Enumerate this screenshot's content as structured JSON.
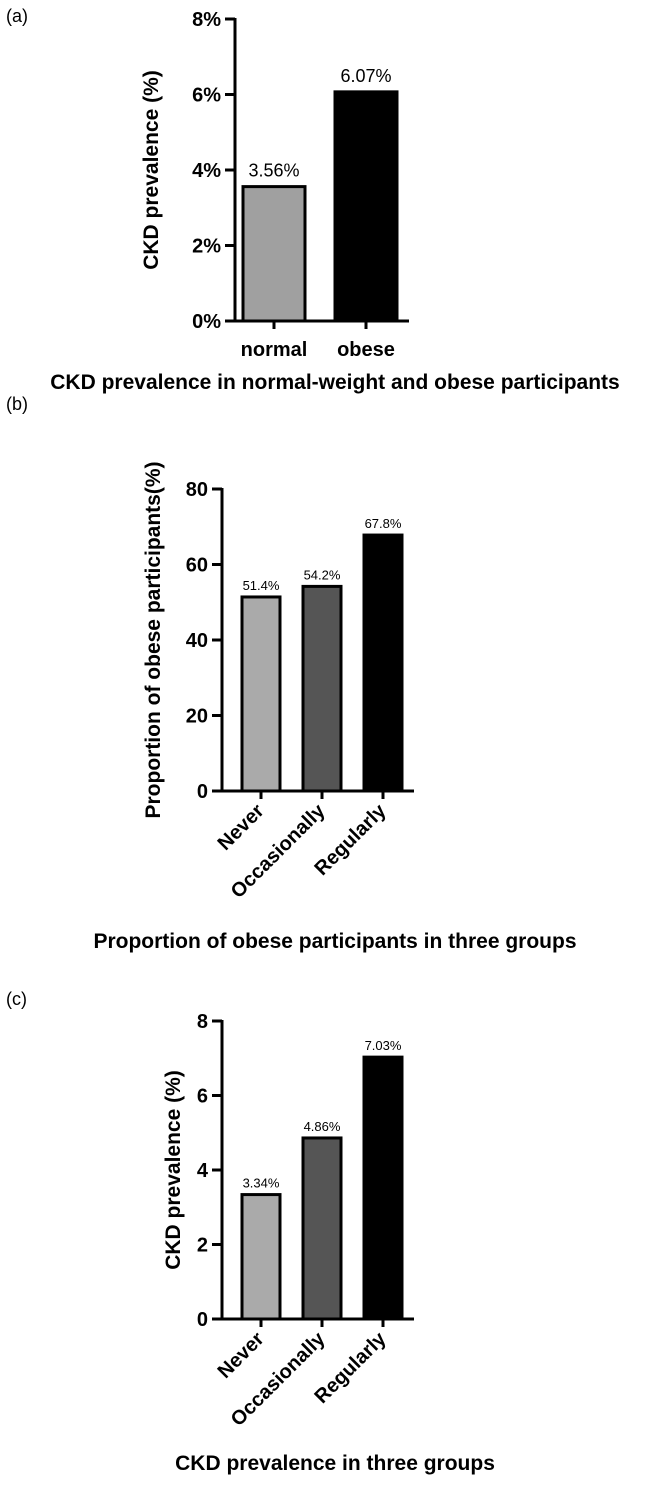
{
  "chart_data": [
    {
      "type": "bar",
      "panel_label": "(a)",
      "caption": "CKD prevalence in normal-weight and obese participants",
      "ylabel": "CKD prevalence (%)",
      "categories": [
        "normal",
        "obese"
      ],
      "values": [
        3.56,
        6.07
      ],
      "data_labels": [
        "3.56%",
        "6.07%"
      ],
      "colors": [
        "#a0a0a0",
        "#000000"
      ],
      "ylim": [
        0,
        8
      ],
      "yticks": [
        0,
        2,
        4,
        6,
        8
      ],
      "ytick_labels": [
        "0%",
        "2%",
        "4%",
        "6%",
        "8%"
      ],
      "xtick_rotation": 0
    },
    {
      "type": "bar",
      "panel_label": "(b)",
      "caption": "Proportion of obese participants in three groups",
      "ylabel": "Proportion of obese participants(%)",
      "categories": [
        "Never",
        "Occasionally",
        "Regularly"
      ],
      "values": [
        51.4,
        54.2,
        67.8
      ],
      "data_labels": [
        "51.4%",
        "54.2%",
        "67.8%"
      ],
      "colors": [
        "#aaaaaa",
        "#555555",
        "#000000"
      ],
      "ylim": [
        0,
        80
      ],
      "yticks": [
        0,
        20,
        40,
        60,
        80
      ],
      "ytick_labels": [
        "0",
        "20",
        "40",
        "60",
        "80"
      ],
      "xtick_rotation": -45
    },
    {
      "type": "bar",
      "panel_label": "(c)",
      "caption": "CKD prevalence in three groups",
      "ylabel": "CKD prevalence (%)",
      "categories": [
        "Never",
        "Occasionally",
        "Regularly"
      ],
      "values": [
        3.34,
        4.86,
        7.03
      ],
      "data_labels": [
        "3.34%",
        "4.86%",
        "7.03%"
      ],
      "colors": [
        "#aaaaaa",
        "#555555",
        "#000000"
      ],
      "ylim": [
        0,
        8
      ],
      "yticks": [
        0,
        2,
        4,
        6,
        8
      ],
      "ytick_labels": [
        "0",
        "2",
        "4",
        "6",
        "8"
      ],
      "xtick_rotation": -45
    }
  ]
}
